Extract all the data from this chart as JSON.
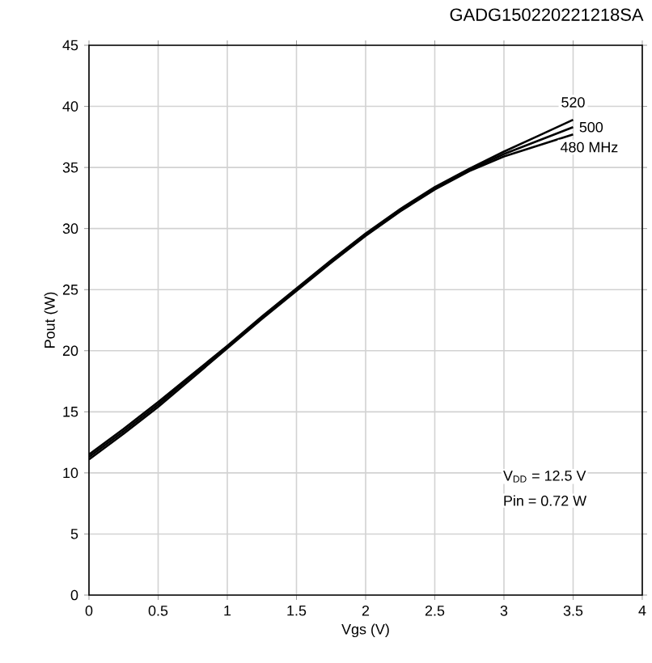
{
  "chart_data": {
    "type": "line",
    "title": "GADG150220221218SA",
    "xlabel": "Vgs (V)",
    "ylabel": "Pout (W)",
    "x": [
      0,
      0.25,
      0.5,
      0.75,
      1,
      1.25,
      1.5,
      1.75,
      2,
      2.25,
      2.5,
      2.75,
      3,
      3.25,
      3.5
    ],
    "series": [
      {
        "name": "520",
        "color": "#000000",
        "values": [
          11.5,
          13.6,
          15.8,
          18.1,
          20.4,
          22.8,
          25.1,
          27.4,
          29.6,
          31.6,
          33.4,
          34.9,
          36.3,
          37.6,
          38.9
        ]
      },
      {
        "name": "500",
        "color": "#000000",
        "values": [
          11.3,
          13.4,
          15.6,
          18.0,
          20.3,
          22.7,
          25.0,
          27.3,
          29.5,
          31.5,
          33.3,
          34.8,
          36.1,
          37.2,
          38.3
        ]
      },
      {
        "name": "480 MHz",
        "color": "#000000",
        "values": [
          11.1,
          13.2,
          15.4,
          17.8,
          20.2,
          22.6,
          24.9,
          27.2,
          29.4,
          31.4,
          33.2,
          34.7,
          35.9,
          36.8,
          37.7
        ]
      }
    ],
    "xlim": [
      0,
      4
    ],
    "ylim": [
      0,
      45
    ],
    "xticks": [
      0,
      0.5,
      1,
      1.5,
      2,
      2.5,
      3,
      3.5,
      4
    ],
    "yticks": [
      0,
      5,
      10,
      15,
      20,
      25,
      30,
      35,
      40,
      45
    ],
    "grid": true,
    "legend": false,
    "marker": "none",
    "line_style": "solid",
    "annotations": [
      "V$_{DD}$ = 12.5 V",
      "Pin = 0.72 W"
    ]
  }
}
